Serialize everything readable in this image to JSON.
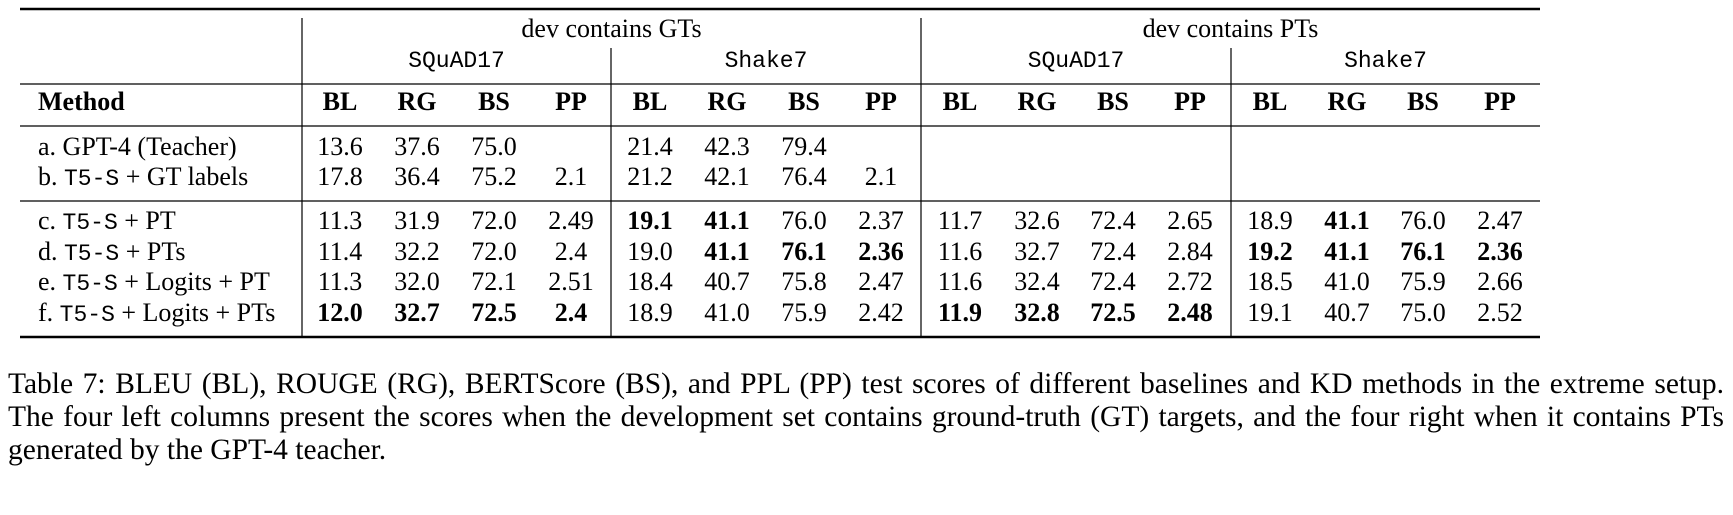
{
  "table": {
    "groups": [
      {
        "label": "dev contains GTs",
        "datasets": [
          "SQuAD17",
          "Shake7"
        ]
      },
      {
        "label": "dev contains PTs",
        "datasets": [
          "SQuAD17",
          "Shake7"
        ]
      }
    ],
    "method_header": "Method",
    "metrics": [
      "BL",
      "RG",
      "BS",
      "PP"
    ],
    "rows": [
      {
        "letter": "a.",
        "model": "GPT-4 (Teacher)",
        "model_mono": false,
        "method": null,
        "cells": [
          "13.6",
          "37.6",
          "75.0",
          null,
          "21.4",
          "42.3",
          "79.4",
          null,
          null,
          null,
          null,
          null,
          null,
          null,
          null,
          null
        ],
        "bold": []
      },
      {
        "letter": "b.",
        "model": "T5-S",
        "model_mono": true,
        "method": "+ GT labels",
        "cells": [
          "17.8",
          "36.4",
          "75.2",
          "2.1",
          "21.2",
          "42.1",
          "76.4",
          "2.1",
          null,
          null,
          null,
          null,
          null,
          null,
          null,
          null
        ],
        "bold": []
      },
      {
        "letter": "c.",
        "model": "T5-S",
        "model_mono": true,
        "method": "+ PT",
        "cells": [
          "11.3",
          "31.9",
          "72.0",
          "2.49",
          "19.1",
          "41.1",
          "76.0",
          "2.37",
          "11.7",
          "32.6",
          "72.4",
          "2.65",
          "18.9",
          "41.1",
          "76.0",
          "2.47"
        ],
        "bold": [
          4,
          5,
          13
        ]
      },
      {
        "letter": "d.",
        "model": "T5-S",
        "model_mono": true,
        "method": "+ PTs",
        "cells": [
          "11.4",
          "32.2",
          "72.0",
          "2.4",
          "19.0",
          "41.1",
          "76.1",
          "2.36",
          "11.6",
          "32.7",
          "72.4",
          "2.84",
          "19.2",
          "41.1",
          "76.1",
          "2.36"
        ],
        "bold": [
          5,
          6,
          7,
          12,
          13,
          14,
          15
        ]
      },
      {
        "letter": "e.",
        "model": "T5-S",
        "model_mono": true,
        "method": "+ Logits + PT",
        "cells": [
          "11.3",
          "32.0",
          "72.1",
          "2.51",
          "18.4",
          "40.7",
          "75.8",
          "2.47",
          "11.6",
          "32.4",
          "72.4",
          "2.72",
          "18.5",
          "41.0",
          "75.9",
          "2.66"
        ],
        "bold": []
      },
      {
        "letter": "f.",
        "model": "T5-S",
        "model_mono": true,
        "method": "+ Logits + PTs",
        "cells": [
          "12.0",
          "32.7",
          "72.5",
          "2.4",
          "18.9",
          "41.0",
          "75.9",
          "2.42",
          "11.9",
          "32.8",
          "72.5",
          "2.48",
          "19.1",
          "40.7",
          "75.0",
          "2.52"
        ],
        "bold": [
          0,
          1,
          2,
          3,
          8,
          9,
          10,
          11
        ]
      }
    ]
  },
  "caption": "Table 7: BLEU (BL), ROUGE (RG), BERTScore (BS), and PPL (PP) test scores of different baselines and KD methods in the extreme setup. The four left columns present the scores when the development set contains ground-truth (GT) targets, and the four right when it contains PTs generated by the GPT-4 teacher."
}
